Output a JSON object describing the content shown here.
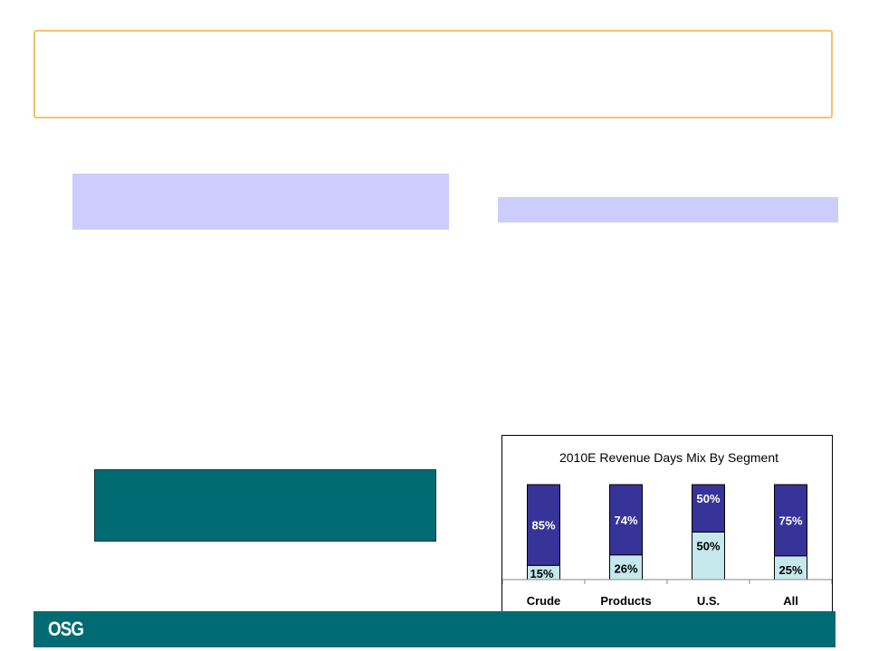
{
  "footer": {
    "logo_text": "OSG"
  },
  "colors": {
    "title_border": "#f4c368",
    "band": "#cccdfc",
    "teal": "#006b72",
    "bar_top": "#363399",
    "bar_bottom": "#c5e8ec"
  },
  "chart_data": {
    "type": "bar",
    "stacked": true,
    "title": "2010E Revenue Days Mix By Segment",
    "categories": [
      "Crude",
      "Products",
      "U.S.",
      "All"
    ],
    "series": [
      {
        "values": [
          15,
          26,
          50,
          25
        ],
        "labels": [
          "15%",
          "26%",
          "50%",
          "25%"
        ],
        "color": "#c5e8ec"
      },
      {
        "values": [
          85,
          74,
          50,
          75
        ],
        "labels": [
          "85%",
          "74%",
          "50%",
          "75%"
        ],
        "color": "#363399"
      }
    ],
    "ylim": [
      0,
      100
    ],
    "grid": false,
    "legend": "none"
  }
}
